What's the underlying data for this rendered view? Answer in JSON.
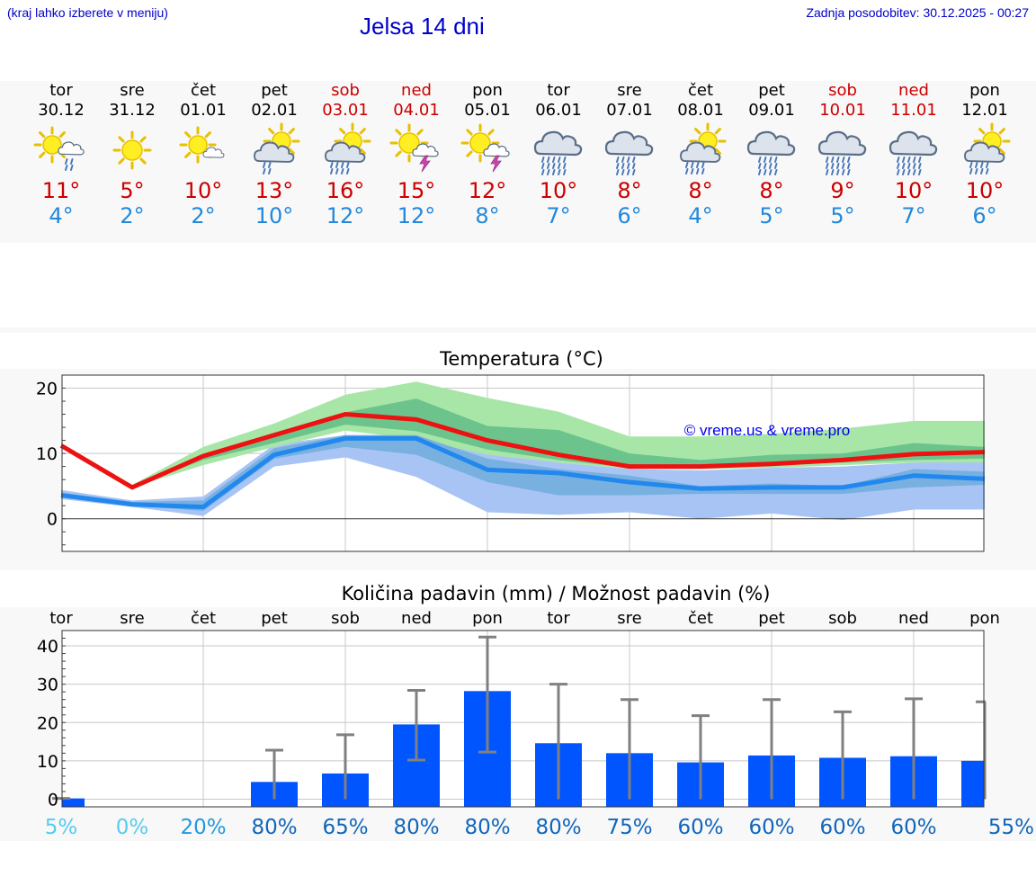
{
  "header": {
    "menu_hint": "(kraj lahko izberete v meniju)",
    "title": "Jelsa 14 dni",
    "updated": "Zadnja posodobitev: 30.12.2025 - 00:27"
  },
  "days": [
    {
      "name": "tor",
      "date": "30.12",
      "weekend": false,
      "icon": "partly-cloudy-light-rain-icon",
      "kind": "pc_rain",
      "max": "11°",
      "min": "4°"
    },
    {
      "name": "sre",
      "date": "31.12",
      "weekend": false,
      "icon": "sunny-icon",
      "kind": "sun",
      "max": "5°",
      "min": "2°"
    },
    {
      "name": "čet",
      "date": "01.01",
      "weekend": false,
      "icon": "sun-small-cloud-icon",
      "kind": "sun_cloud",
      "max": "10°",
      "min": "2°"
    },
    {
      "name": "pet",
      "date": "02.01",
      "weekend": false,
      "icon": "cloud-sun-rain-icon",
      "kind": "cloud_sun_rain",
      "max": "13°",
      "min": "10°"
    },
    {
      "name": "sob",
      "date": "03.01",
      "weekend": true,
      "icon": "cloud-sun-heavy-rain-icon",
      "kind": "cloud_sun_heavy",
      "max": "16°",
      "min": "12°"
    },
    {
      "name": "ned",
      "date": "04.01",
      "weekend": true,
      "icon": "sun-thunderstorm-icon",
      "kind": "sun_thunder",
      "max": "15°",
      "min": "12°"
    },
    {
      "name": "pon",
      "date": "05.01",
      "weekend": false,
      "icon": "sun-thunderstorm-icon",
      "kind": "sun_thunder",
      "max": "12°",
      "min": "8°"
    },
    {
      "name": "tor",
      "date": "06.01",
      "weekend": false,
      "icon": "cloud-heavy-rain-icon",
      "kind": "cloud_heavy",
      "max": "10°",
      "min": "7°"
    },
    {
      "name": "sre",
      "date": "07.01",
      "weekend": false,
      "icon": "cloud-rain-icon",
      "kind": "cloud_rain",
      "max": "8°",
      "min": "6°"
    },
    {
      "name": "čet",
      "date": "08.01",
      "weekend": false,
      "icon": "cloud-sun-heavy-rain-icon",
      "kind": "cloud_sun_heavy",
      "max": "8°",
      "min": "4°"
    },
    {
      "name": "pet",
      "date": "09.01",
      "weekend": false,
      "icon": "cloud-rain-icon",
      "kind": "cloud_rain",
      "max": "8°",
      "min": "5°"
    },
    {
      "name": "sob",
      "date": "10.01",
      "weekend": true,
      "icon": "cloud-heavy-rain-icon",
      "kind": "cloud_heavy",
      "max": "9°",
      "min": "5°"
    },
    {
      "name": "ned",
      "date": "11.01",
      "weekend": true,
      "icon": "cloud-heavy-rain-icon",
      "kind": "cloud_heavy",
      "max": "10°",
      "min": "7°"
    },
    {
      "name": "pon",
      "date": "12.01",
      "weekend": false,
      "icon": "cloud-sun-heavy-rain-icon",
      "kind": "cloud_sun_heavy",
      "max": "10°",
      "min": "6°"
    }
  ],
  "colors": {
    "max_line": "#ee1111",
    "min_line": "#2288ee",
    "max_band_outer": "#a8e6a8",
    "max_band_inner": "#6cc48c",
    "min_band_outer": "#a8c4f4",
    "min_band_inner": "#78b0e0",
    "bar": "#0055ff",
    "error_bar": "#808080",
    "grid": "#c8c8c8",
    "title": "#0000cc",
    "watermark": "#0000ee"
  },
  "chart_data": [
    {
      "type": "line",
      "title": "Temperatura (°C)",
      "categories": [
        "tor",
        "sre",
        "čet",
        "pet",
        "sob",
        "ned",
        "pon",
        "tor",
        "sre",
        "čet",
        "pet",
        "sob",
        "ned",
        "pon"
      ],
      "ylim": [
        -5,
        22
      ],
      "yticks": [
        0,
        10,
        20
      ],
      "annotation": "© vreme.us & vreme.pro",
      "series": [
        {
          "name": "max",
          "values": [
            11.2,
            4.8,
            9.6,
            12.8,
            16.0,
            15.2,
            12.0,
            9.8,
            8.0,
            8.0,
            8.4,
            9.0,
            9.9,
            10.2
          ]
        },
        {
          "name": "min",
          "values": [
            3.6,
            2.2,
            1.8,
            9.8,
            12.3,
            12.3,
            7.5,
            7.0,
            5.6,
            4.6,
            4.8,
            4.8,
            6.6,
            6.1
          ]
        }
      ],
      "max_band_outer": {
        "low": [
          11.0,
          4.8,
          8.2,
          11.0,
          13.5,
          12.2,
          9.8,
          8.6,
          7.6,
          7.6,
          7.8,
          8.2,
          8.6,
          8.6
        ],
        "high": [
          11.6,
          5.2,
          11.0,
          14.6,
          19.0,
          21.0,
          18.5,
          16.4,
          12.6,
          12.6,
          13.0,
          13.8,
          15.0,
          15.0
        ]
      },
      "max_band_inner": {
        "low": [
          11.0,
          4.8,
          9.0,
          11.6,
          14.4,
          13.4,
          10.6,
          9.0,
          7.8,
          7.8,
          8.2,
          8.6,
          9.0,
          9.2
        ],
        "high": [
          11.4,
          5.0,
          9.8,
          13.2,
          16.3,
          18.4,
          14.2,
          13.6,
          10.0,
          9.0,
          9.8,
          10.0,
          11.6,
          11.0
        ]
      },
      "min_band_outer": {
        "low": [
          3.0,
          1.8,
          0.4,
          8.0,
          9.4,
          6.4,
          1.0,
          0.6,
          1.0,
          0.0,
          0.8,
          -0.2,
          1.4,
          1.4
        ],
        "high": [
          4.4,
          2.8,
          3.4,
          11.4,
          12.8,
          12.8,
          10.2,
          8.6,
          7.6,
          7.4,
          7.8,
          8.0,
          8.6,
          8.8
        ]
      },
      "min_band_inner": {
        "low": [
          3.4,
          2.0,
          1.2,
          9.2,
          11.0,
          9.8,
          5.6,
          3.6,
          3.6,
          3.8,
          3.8,
          3.8,
          4.8,
          5.2
        ],
        "high": [
          4.0,
          2.6,
          2.8,
          10.8,
          12.8,
          12.8,
          9.2,
          7.6,
          6.6,
          5.0,
          5.4,
          5.0,
          7.6,
          7.2
        ]
      }
    },
    {
      "type": "bar",
      "title": "Količina padavin (mm) / Možnost padavin (%)",
      "categories": [
        "tor",
        "sre",
        "čet",
        "pet",
        "sob",
        "ned",
        "pon",
        "tor",
        "sre",
        "čet",
        "pet",
        "sob",
        "ned",
        "pon"
      ],
      "ylim": [
        -2,
        44
      ],
      "yticks": [
        0,
        10,
        20,
        30,
        40
      ],
      "values": [
        0.2,
        0,
        0,
        4.5,
        6.7,
        19.5,
        28.2,
        14.6,
        12.0,
        9.6,
        11.4,
        10.8,
        11.2,
        10.0
      ],
      "error_low": [
        0,
        0,
        0,
        0,
        0,
        10.2,
        12.3,
        0,
        0,
        0,
        0,
        0,
        0,
        0
      ],
      "error_high": [
        0.2,
        0,
        0,
        12.8,
        16.8,
        28.4,
        42.3,
        30.0,
        26.0,
        21.8,
        26.0,
        22.8,
        26.2,
        25.4
      ],
      "probability": [
        "5%",
        "0%",
        "20%",
        "80%",
        "65%",
        "80%",
        "80%",
        "80%",
        "75%",
        "60%",
        "60%",
        "60%",
        "60%",
        "55%"
      ],
      "probability_colors": [
        "#55ccee",
        "#55ccee",
        "#2299dd",
        "#1166bb",
        "#1166bb",
        "#1166bb",
        "#1166bb",
        "#1166bb",
        "#1166bb",
        "#1166bb",
        "#1166bb",
        "#1166bb",
        "#1166bb",
        "#1166bb"
      ]
    }
  ]
}
